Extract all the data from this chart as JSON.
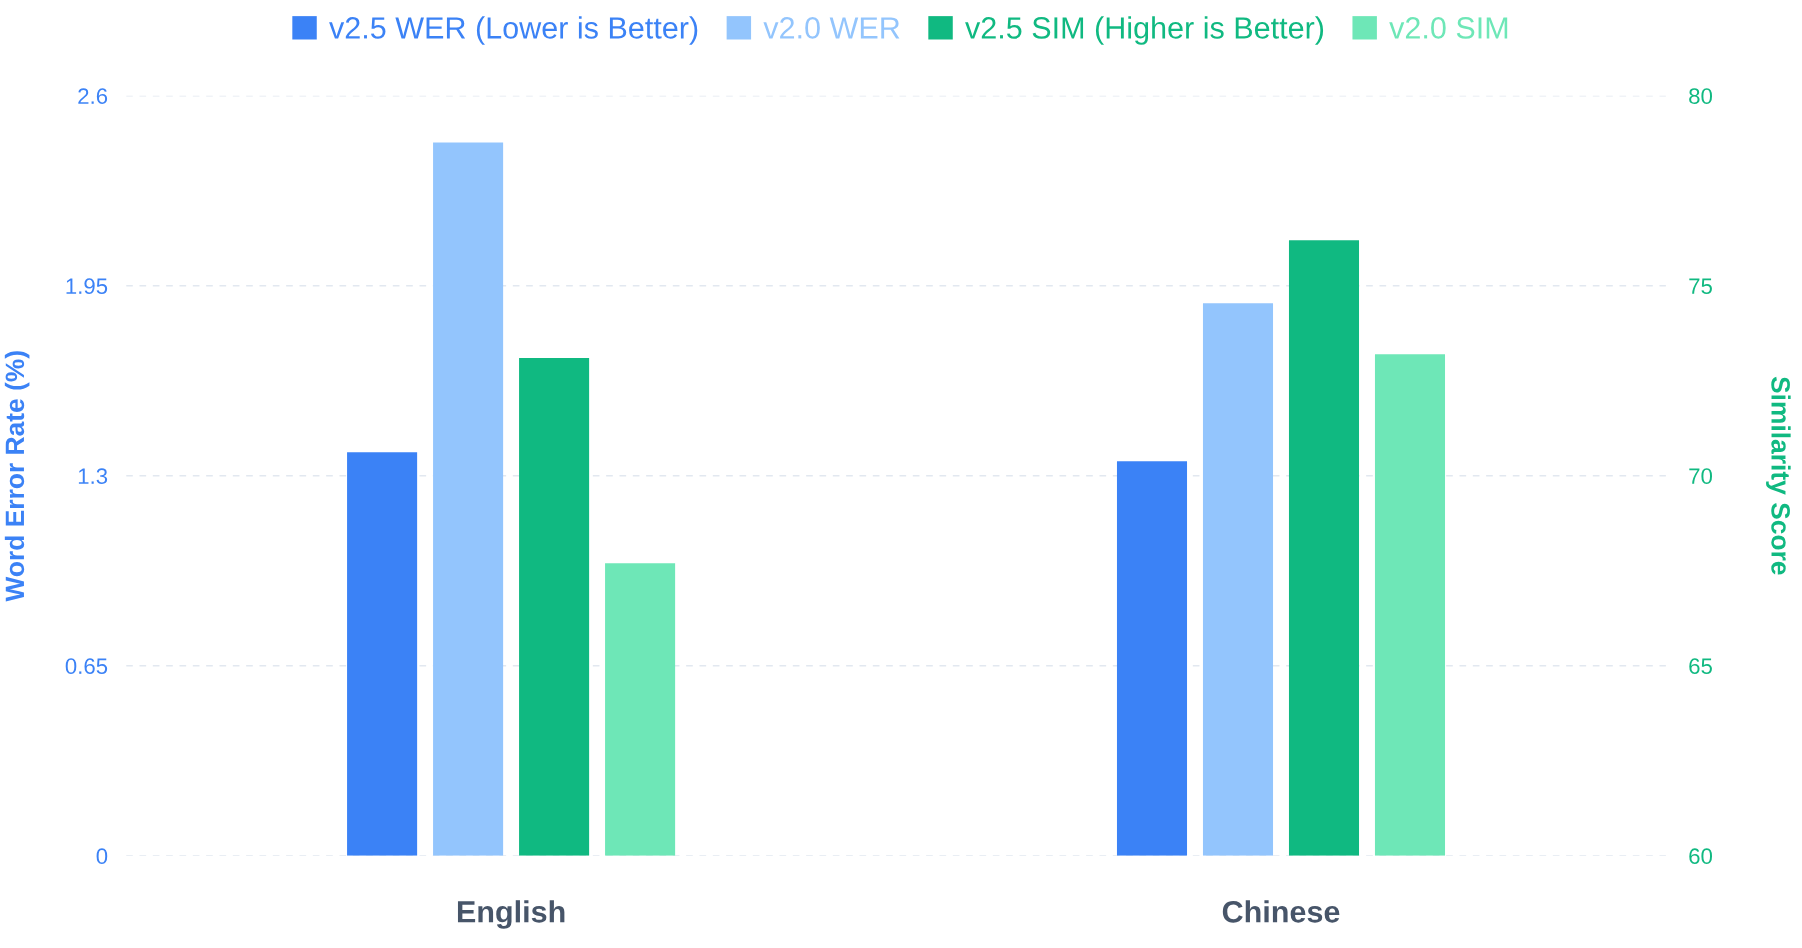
{
  "chart_data": {
    "type": "bar",
    "categories": [
      "English",
      "Chinese"
    ],
    "ylabel": "Word Error Rate (%)",
    "y2label": "Similarity Score",
    "ylim": [
      0,
      2.6
    ],
    "yticks": [
      0,
      0.65,
      1.3,
      1.95,
      2.6
    ],
    "y2lim": [
      60,
      80
    ],
    "y2ticks": [
      60,
      65,
      70,
      75,
      80
    ],
    "series": [
      {
        "name": "v2.5 WER (Lower is Better)",
        "color": "#3b82f6",
        "values": [
          1.38,
          1.35
        ]
      },
      {
        "name": "v2.0 WER",
        "color": "#93c5fd",
        "values": [
          2.44,
          1.89
        ]
      },
      {
        "name": "v2.5 SIM (Higher is Better)",
        "color": "#10b981",
        "values": [
          73.1,
          76.2
        ],
        "axis": "y2"
      },
      {
        "name": "v2.0 SIM",
        "color": "#6ee7b7",
        "values": [
          67.7,
          73.2
        ],
        "axis": "y2"
      }
    ],
    "grid": "y",
    "legend": "top"
  }
}
